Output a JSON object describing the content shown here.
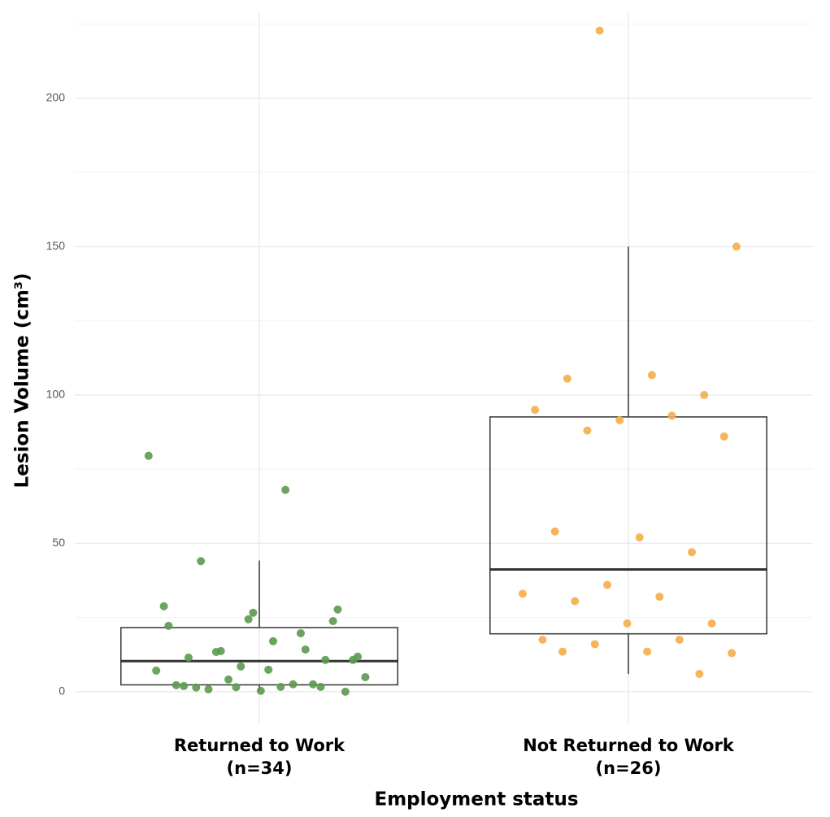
{
  "chart_data": {
    "type": "box",
    "y_label": "Lesion Volume (cm³)",
    "x_label": "Employment status",
    "categories": [
      "Returned to Work",
      "Not Returned to Work"
    ],
    "category_counts": [
      "(n=34)",
      "(n=26)"
    ],
    "colors": [
      "#5b9a4e",
      "#f5ad4a"
    ],
    "boxes": [
      {
        "whisker_low": 0,
        "q1": 2.3,
        "median": 10.3,
        "q3": 21.6,
        "whisker_high": 44.2
      },
      {
        "whisker_low": 6,
        "q1": 19.5,
        "median": 41.2,
        "q3": 92.6,
        "whisker_high": 150
      }
    ],
    "points": [
      [
        79.5,
        68,
        44,
        27.7,
        26.6,
        22.2,
        14.2,
        13.7,
        11.8,
        17,
        11.5,
        10.7,
        8.5,
        7.1,
        2.5,
        0.8,
        0,
        0.3,
        2.2,
        2.5,
        4.1,
        4.9,
        1.6,
        1.4,
        23.8,
        24.4,
        28.8,
        19.7,
        13.4,
        10.7,
        7.4,
        1.9,
        1.6,
        1.5
      ],
      [
        222.8,
        150,
        106.7,
        105.5,
        100,
        91.5,
        95,
        93,
        88,
        86,
        52,
        54,
        47,
        36,
        33,
        32,
        30.5,
        23,
        23,
        17.5,
        17.5,
        16,
        13,
        13.5,
        13.5,
        6
      ]
    ],
    "ylim": [
      -11,
      229
    ],
    "yticks": [
      0,
      50,
      100,
      150,
      200
    ],
    "minor_yticks": [
      25,
      75,
      125,
      175,
      225
    ],
    "grid": true
  }
}
